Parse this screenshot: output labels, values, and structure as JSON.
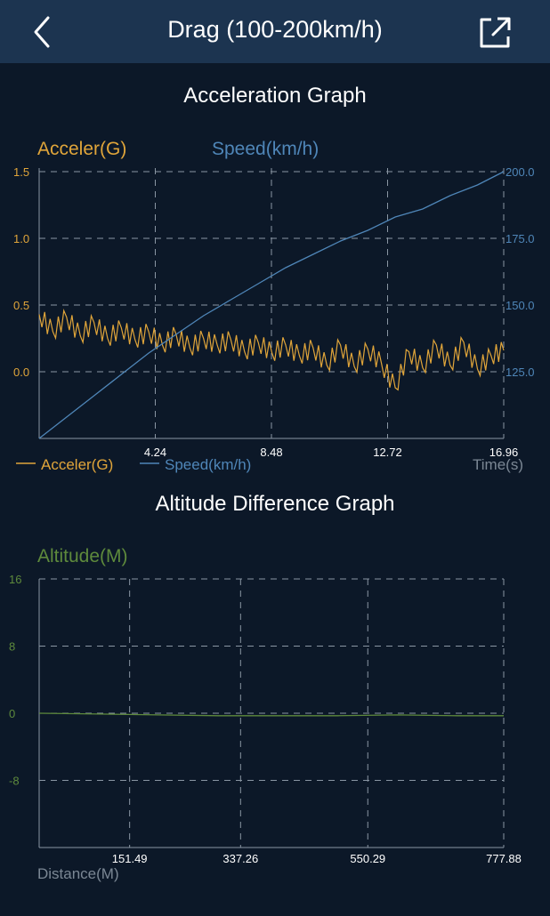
{
  "header": {
    "title": "Drag (100-200km/h)",
    "back_icon": "chevron-left-icon",
    "share_icon": "share-icon"
  },
  "colors": {
    "accel": "#e0a53a",
    "speed": "#4f86b8",
    "altitude": "#5e8a3c",
    "grid": "#8a96a3",
    "axis_text": "#7b8794"
  },
  "accel_graph": {
    "title": "Acceleration Graph",
    "left_axis_title": "Acceler(G)",
    "right_axis_title": "Speed(km/h)",
    "legend_accel": "Acceler(G)",
    "legend_speed": "Speed(km/h)",
    "x_axis_title": "Time(s)"
  },
  "alt_graph": {
    "title": "Altitude Difference Graph",
    "axis_title": "Altitude(M)",
    "x_axis_title": "Distance(M)"
  },
  "chart_data": [
    {
      "type": "line",
      "title": "Acceleration Graph",
      "xlabel": "Time(s)",
      "xlim": [
        0,
        16.96
      ],
      "x_ticks": [
        "4.24",
        "8.48",
        "12.72",
        "16.96"
      ],
      "y_left": {
        "label": "Acceler(G)",
        "ticks": [
          "1.5",
          "1.0",
          "0.5",
          "0.0"
        ],
        "ylim": [
          -0.5,
          1.5
        ]
      },
      "y_right": {
        "label": "Speed(km/h)",
        "ticks": [
          "200.0",
          "175.0",
          "150.0",
          "125.0"
        ],
        "ylim": [
          100,
          200
        ]
      },
      "grid": true,
      "legend": "bottom-left",
      "series": [
        {
          "name": "Acceler(G)",
          "axis": "left",
          "x": [
            0,
            0.5,
            1.0,
            1.5,
            2.0,
            2.5,
            3.0,
            3.5,
            4.0,
            4.5,
            5.0,
            5.5,
            6.0,
            6.5,
            7.0,
            7.5,
            8.0,
            8.5,
            9.0,
            9.5,
            10.0,
            10.5,
            11.0,
            11.5,
            12.0,
            12.5,
            13.0,
            13.5,
            14.0,
            14.5,
            15.0,
            15.5,
            16.0,
            16.5,
            16.96
          ],
          "values": [
            0.43,
            0.3,
            0.41,
            0.27,
            0.37,
            0.25,
            0.33,
            0.24,
            0.3,
            0.2,
            0.28,
            0.18,
            0.25,
            0.2,
            0.24,
            0.15,
            0.22,
            0.14,
            0.2,
            0.12,
            0.18,
            0.05,
            0.2,
            0.04,
            0.17,
            0.06,
            -0.12,
            0.15,
            0.03,
            0.2,
            0.05,
            0.22,
            0.02,
            0.12,
            0.16
          ]
        },
        {
          "name": "Speed(km/h)",
          "axis": "right",
          "x": [
            0,
            1,
            2,
            3,
            4,
            5,
            6,
            7,
            8,
            9,
            10,
            11,
            12,
            13,
            14,
            15,
            16,
            16.96
          ],
          "values": [
            100,
            108,
            116,
            124,
            132,
            139,
            146,
            152,
            158,
            164,
            169,
            174,
            178,
            183,
            186,
            191,
            195,
            200
          ]
        }
      ]
    },
    {
      "type": "line",
      "title": "Altitude Difference Graph",
      "xlabel": "Distance(M)",
      "ylabel": "Altitude(M)",
      "xlim": [
        0,
        777.88
      ],
      "x_ticks": [
        "151.49",
        "337.26",
        "550.29",
        "777.88"
      ],
      "y_ticks": [
        "16",
        "8",
        "0",
        "-8"
      ],
      "ylim": [
        -16,
        16
      ],
      "grid": true,
      "series": [
        {
          "name": "Altitude(M)",
          "x": [
            0,
            100,
            200,
            300,
            400,
            500,
            600,
            700,
            777.88
          ],
          "values": [
            0,
            -0.1,
            -0.2,
            -0.3,
            -0.3,
            -0.3,
            -0.2,
            -0.3,
            -0.3
          ]
        }
      ]
    }
  ]
}
